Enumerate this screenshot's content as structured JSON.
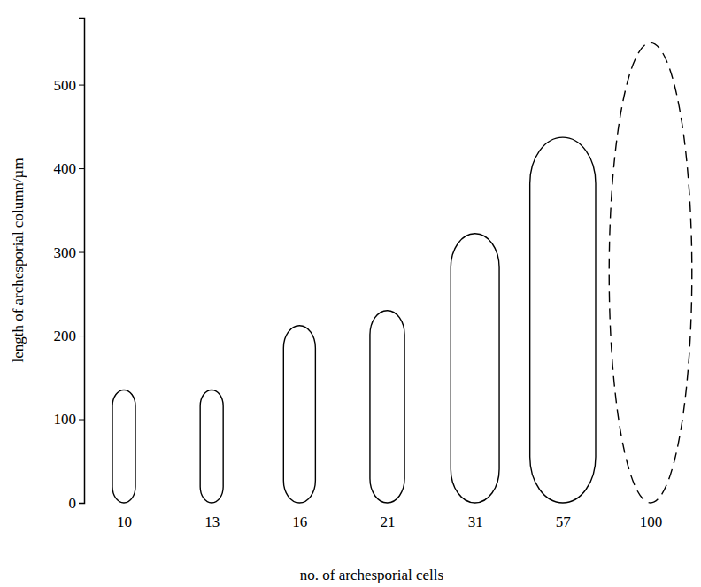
{
  "chart_data": {
    "type": "bar",
    "x_label": "no. of archesporial cells",
    "y_label": "length of archesporial column/µm",
    "categories": [
      "10",
      "13",
      "16",
      "21",
      "31",
      "57",
      "100"
    ],
    "series": [
      {
        "color": "#000000",
        "line_style": "solid",
        "values": [
          135,
          135,
          212,
          230,
          322,
          437,
          null
        ]
      },
      {
        "color": "#000000",
        "line_style": "dashed",
        "values": [
          null,
          null,
          null,
          null,
          null,
          null,
          550
        ]
      }
    ],
    "ylim": [
      0,
      580
    ],
    "yticks": [
      0,
      100,
      200,
      300,
      400,
      500
    ]
  }
}
